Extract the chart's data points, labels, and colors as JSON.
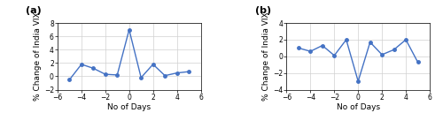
{
  "panel_a": {
    "label": "(a)",
    "x": [
      -5,
      -4,
      -3,
      -2,
      -1,
      0,
      1,
      2,
      3,
      4,
      5
    ],
    "y": [
      -0.5,
      1.8,
      1.2,
      0.3,
      0.2,
      7.0,
      -0.2,
      1.8,
      0.1,
      0.5,
      0.7
    ],
    "xlim": [
      -6,
      6
    ],
    "ylim": [
      -2,
      8
    ],
    "yticks": [
      -2,
      0,
      2,
      4,
      6,
      8
    ],
    "xticks": [
      -6,
      -4,
      -2,
      0,
      2,
      4,
      6
    ],
    "xlabel": "No of Days",
    "ylabel": "% Change of India VIX"
  },
  "panel_b": {
    "label": "(b)",
    "x": [
      -5,
      -4,
      -3,
      -2,
      -1,
      0,
      1,
      2,
      3,
      4,
      5
    ],
    "y": [
      1.0,
      0.6,
      1.3,
      0.1,
      2.0,
      -3.0,
      1.7,
      0.2,
      0.8,
      2.0,
      -0.7
    ],
    "xlim": [
      -6,
      6
    ],
    "ylim": [
      -4,
      4
    ],
    "yticks": [
      -4,
      -2,
      0,
      2,
      4
    ],
    "xticks": [
      -6,
      -4,
      -2,
      0,
      2,
      4,
      6
    ],
    "xlabel": "No of Days",
    "ylabel": "% Change of India VIX"
  },
  "line_color": "#4472c4",
  "marker": "o",
  "markersize": 2.5,
  "linewidth": 1.0,
  "label_fontsize": 6.5,
  "tick_fontsize": 5.5,
  "panel_label_fontsize": 8,
  "grid_color": "#d0d0d0",
  "background_color": "#ffffff"
}
